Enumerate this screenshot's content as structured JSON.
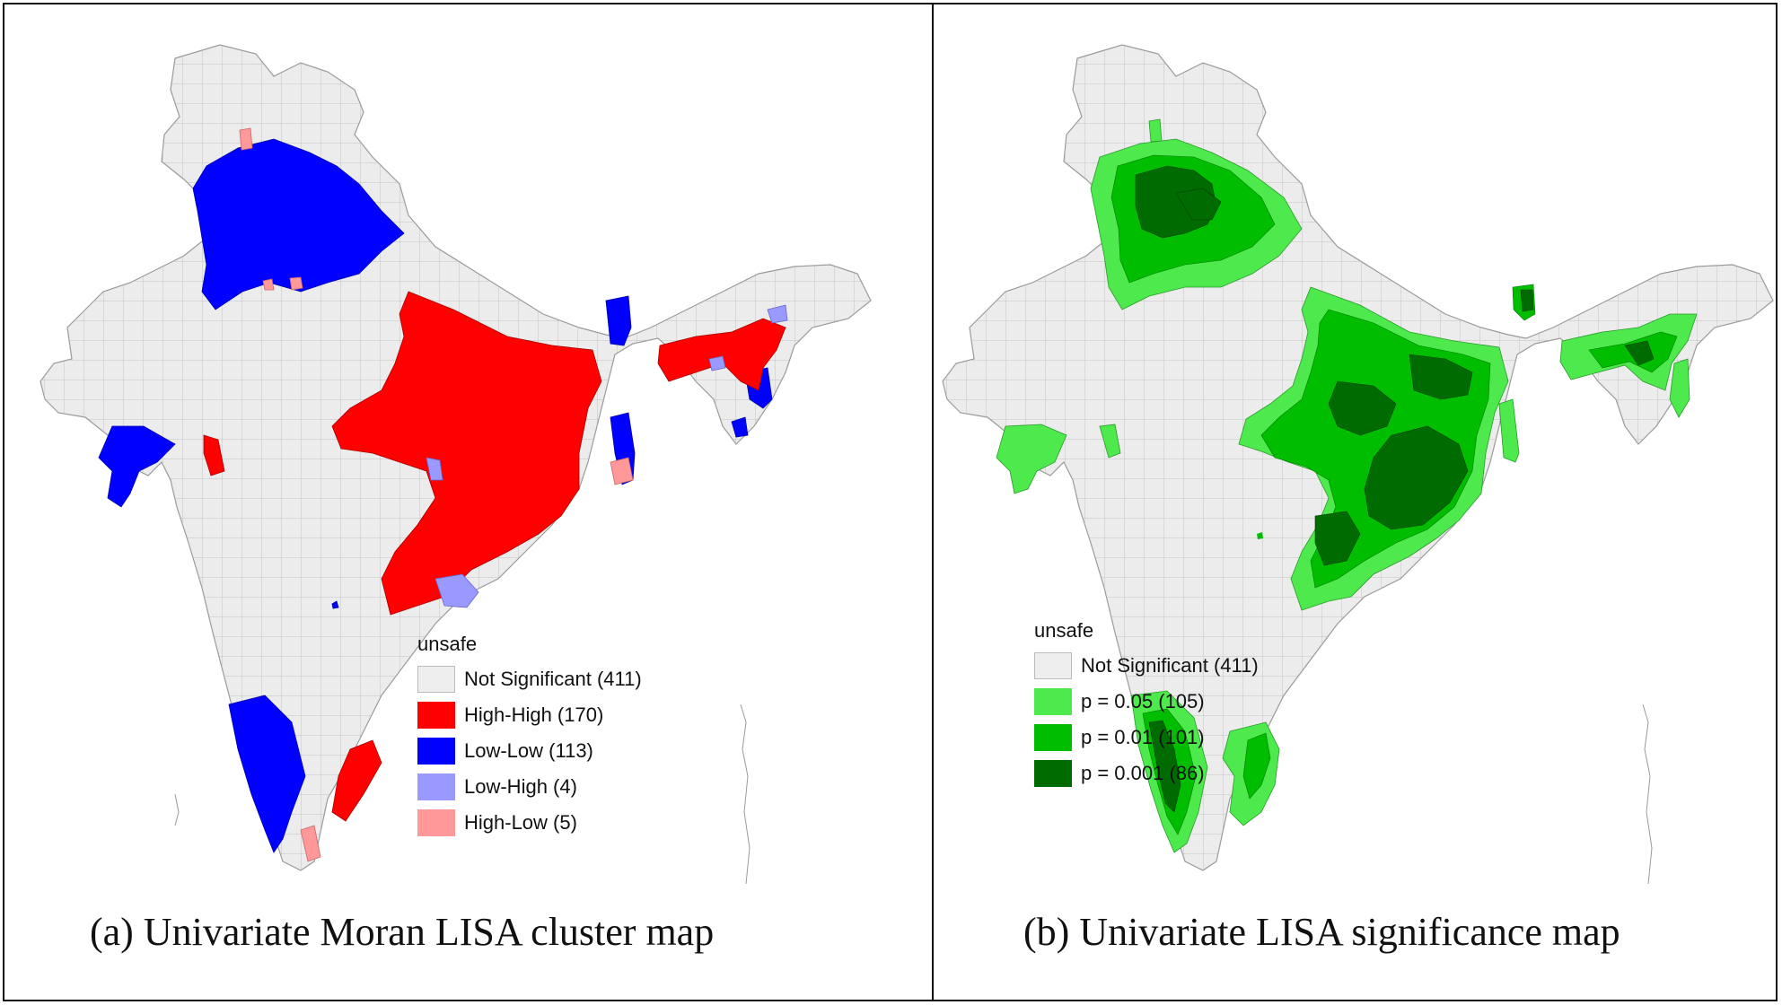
{
  "panel_a": {
    "caption": "(a)  Univariate Moran LISA cluster map",
    "legend_title": "unsafe",
    "legend": [
      {
        "label": "Not Significant (411)",
        "color": "#eeeeee"
      },
      {
        "label": "High-High (170)",
        "color": "#ff0000"
      },
      {
        "label": "Low-Low (113)",
        "color": "#0000ff"
      },
      {
        "label": "Low-High (4)",
        "color": "#9999ff"
      },
      {
        "label": "High-Low (5)",
        "color": "#ff9999"
      }
    ]
  },
  "panel_b": {
    "caption": "(b)  Univariate LISA significance map",
    "legend_title": "unsafe",
    "legend": [
      {
        "label": "Not Significant (411)",
        "color": "#eeeeee"
      },
      {
        "label": "p = 0.05 (105)",
        "color": "#4de94d"
      },
      {
        "label": "p = 0.01 (101)",
        "color": "#00bd00"
      },
      {
        "label": "p = 0.001 (86)",
        "color": "#006b00"
      }
    ]
  },
  "colors": {
    "base_fill": "#ececec",
    "border": "#9a9a9a"
  }
}
